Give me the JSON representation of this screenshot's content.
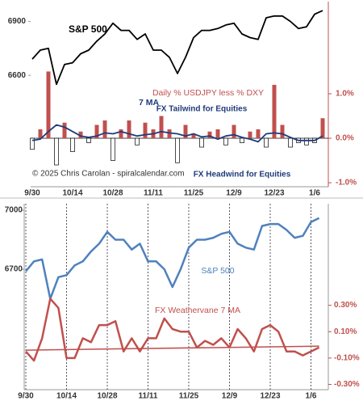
{
  "chart_data": [
    {
      "type": "combo",
      "categories": [
        "9/30",
        null,
        null,
        null,
        null,
        "10/14",
        null,
        null,
        null,
        null,
        "10/28",
        null,
        null,
        null,
        null,
        "11/11",
        null,
        null,
        null,
        null,
        "11/25",
        null,
        null,
        null,
        null,
        "12/9",
        null,
        null,
        null,
        null,
        "12/23",
        null,
        null,
        null,
        null,
        "1/6",
        null
      ],
      "series": [
        {
          "name": "S&P 500",
          "type": "line",
          "color": "#000000",
          "axis": "y",
          "values": [
            6690,
            6740,
            6750,
            6550,
            6660,
            6670,
            6720,
            6740,
            6790,
            6830,
            6890,
            6850,
            6850,
            6800,
            6830,
            6740,
            6740,
            6700,
            6610,
            6700,
            6810,
            6850,
            6850,
            6860,
            6880,
            6890,
            6830,
            6810,
            6800,
            6920,
            6930,
            6930,
            6900,
            6860,
            6870,
            6940,
            6960
          ]
        },
        {
          "name": "Daily % USDJPY less % DXY",
          "type": "bar",
          "color": "#c0504d",
          "negative_color": "#ffffff",
          "axis": "y2",
          "values": [
            -0.25,
            0.2,
            1.5,
            -0.6,
            0.35,
            -0.3,
            0.15,
            -0.1,
            0.3,
            0.4,
            -0.5,
            0.2,
            0.4,
            -0.15,
            0.35,
            0.2,
            0.5,
            0.2,
            -0.55,
            0.3,
            0.1,
            -0.2,
            0.15,
            0.2,
            -0.15,
            0.3,
            -0.1,
            0.15,
            0.2,
            -0.2,
            1.2,
            0.3,
            -0.2,
            -0.1,
            -0.15,
            -0.1,
            0.45
          ]
        },
        {
          "name": "7 MA",
          "type": "line",
          "color": "#1f3b7a",
          "axis": "y2",
          "values": [
            -0.05,
            -0.02,
            0.15,
            0.3,
            0.25,
            0.15,
            0.05,
            0.02,
            0.05,
            0.12,
            0.1,
            0.15,
            0.1,
            0.05,
            0.08,
            0.1,
            0.15,
            0.12,
            0.1,
            0.05,
            0.1,
            0.03,
            0.05,
            -0.02,
            0.05,
            0.08,
            0.02,
            -0.02,
            -0.08,
            0.1,
            0.12,
            0.1,
            0.02,
            -0.05,
            -0.05,
            -0.05,
            0.05
          ]
        }
      ],
      "annotations": [
        "FX Tailwind for Equities",
        "© 2025 Chris Carolan - spiralcalendar.com",
        "FX Headwind for Equities"
      ],
      "ylim": [
        5980,
        7010
      ],
      "yticks": [
        6600,
        6900
      ],
      "y2lim": [
        -1.09,
        3.07
      ],
      "y2ticks": [
        {
          "value": 1,
          "label": "1.0%"
        },
        {
          "value": 0,
          "label": "0.0%"
        },
        {
          "value": -1,
          "label": "-1.0%"
        }
      ],
      "y2_color": "#c0504d",
      "xgrid": false
    },
    {
      "type": "combo",
      "categories": [
        "9/30",
        null,
        null,
        null,
        null,
        "10/14",
        null,
        null,
        null,
        null,
        "10/28",
        null,
        null,
        null,
        null,
        "11/11",
        null,
        null,
        null,
        null,
        "11/25",
        null,
        null,
        null,
        null,
        "12/9",
        null,
        null,
        null,
        null,
        "12/23",
        null,
        null,
        null,
        null,
        "1/6",
        null
      ],
      "series": [
        {
          "name": "S&P 500",
          "type": "line",
          "color": "#4f81bd",
          "axis": "y",
          "values": [
            6690,
            6740,
            6750,
            6550,
            6660,
            6670,
            6720,
            6740,
            6790,
            6830,
            6890,
            6850,
            6850,
            6800,
            6830,
            6740,
            6740,
            6700,
            6610,
            6700,
            6810,
            6850,
            6850,
            6860,
            6880,
            6890,
            6830,
            6810,
            6800,
            6920,
            6930,
            6930,
            6900,
            6860,
            6870,
            6940,
            6960
          ]
        },
        {
          "name": "FX Weathervane 7 MA",
          "type": "line",
          "color": "#c0504d",
          "axis": "y2",
          "values": [
            -0.05,
            -0.12,
            0.05,
            0.35,
            0.28,
            -0.1,
            -0.1,
            0.05,
            0.02,
            0.15,
            0.15,
            0.18,
            -0.05,
            0.05,
            -0.05,
            0.05,
            0.05,
            0.2,
            0.12,
            0.1,
            0.1,
            -0.02,
            0.03,
            0.0,
            0.05,
            -0.02,
            0.12,
            0.05,
            -0.05,
            0.12,
            0.15,
            0.1,
            -0.05,
            -0.05,
            -0.08,
            -0.05,
            -0.02
          ]
        }
      ],
      "trend_line": [
        -0.04,
        -0.01
      ],
      "ylim": [
        6088,
        7033
      ],
      "yticks": [
        6700,
        7000
      ],
      "y2lim": [
        -0.34,
        1.07
      ],
      "y2ticks": [
        {
          "value": 0.3,
          "label": "0.30%"
        },
        {
          "value": 0.1,
          "label": "0.10%"
        },
        {
          "value": -0.1,
          "label": "-0.10%"
        },
        {
          "value": -0.3,
          "label": "-0.30%"
        }
      ],
      "y2_color": "#c0504d",
      "xgrid": true
    }
  ]
}
